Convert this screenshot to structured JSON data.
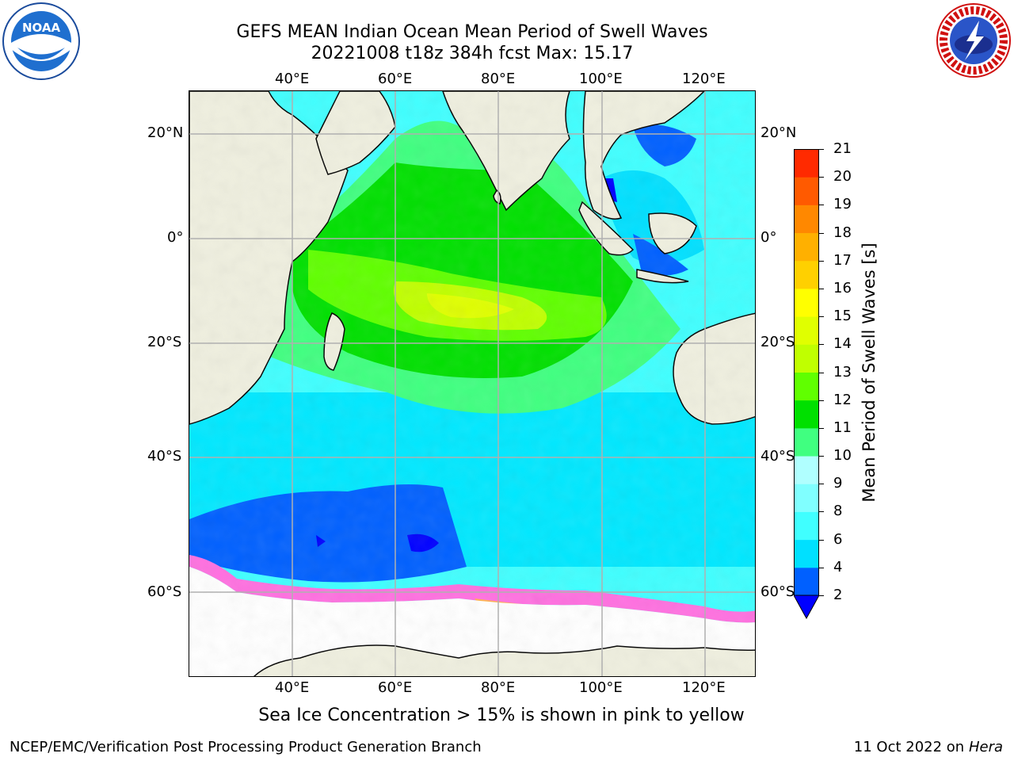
{
  "title": {
    "line1": "GEFS MEAN Indian Ocean Mean Period of Swell Waves",
    "line2": "20221008 t18z 384h fcst   Max: 15.17"
  },
  "logos": {
    "left": {
      "name": "noaa-logo",
      "text": "NOAA"
    },
    "right": {
      "name": "nws-logo",
      "text": "NATIONAL WEATHER SERVICE"
    }
  },
  "map": {
    "lon_labels": [
      "40°E",
      "60°E",
      "80°E",
      "100°E",
      "120°E"
    ],
    "lat_labels": [
      "20°N",
      "0°",
      "20°S",
      "40°S",
      "60°S"
    ]
  },
  "colorbar": {
    "title": "Mean Period of Swell Waves [s]",
    "ticks": [
      "2",
      "4",
      "6",
      "8",
      "9",
      "10",
      "11",
      "12",
      "13",
      "14",
      "15",
      "16",
      "17",
      "18",
      "19",
      "20",
      "21"
    ],
    "colors": [
      "#0060ff",
      "#00e0ff",
      "#40ffff",
      "#80ffff",
      "#b0ffff",
      "#40ff80",
      "#00e000",
      "#60ff00",
      "#c0ff00",
      "#e0ff00",
      "#ffff00",
      "#ffd000",
      "#ffb000",
      "#ff8800",
      "#ff5a00",
      "#ff2a00"
    ],
    "under_color": "#0000ff"
  },
  "note": "Sea Ice Concentration > 15% is shown in pink to yellow",
  "footer": {
    "left": "NCEP/EMC/Verification Post Processing Product Generation Branch",
    "right_date": "11 Oct 2022 on",
    "right_host": "Hera"
  }
}
